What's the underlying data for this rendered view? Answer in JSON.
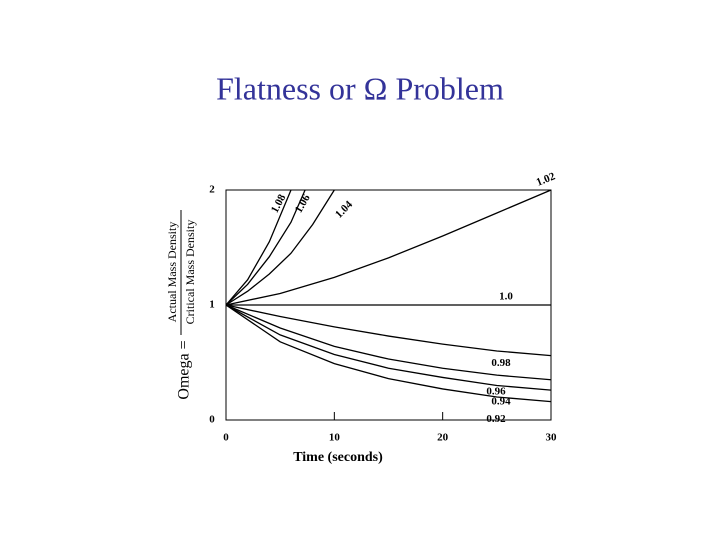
{
  "chart_data": {
    "type": "line",
    "title": "Flatness or Ω Problem",
    "xlabel": "Time (seconds)",
    "ylabel": {
      "lhs": "Omega =",
      "numerator": "Actual Mass Density",
      "denominator": "Critical Mass Density"
    },
    "xlim": [
      0,
      30
    ],
    "xticks": [
      0,
      10,
      20,
      30
    ],
    "ylim": [
      0,
      2
    ],
    "yticks": [
      0,
      1,
      2
    ],
    "color": "#000000",
    "series": [
      {
        "name": "1.08",
        "x": [
          0,
          2,
          4,
          6
        ],
        "values": [
          1,
          1.22,
          1.55,
          2.0
        ]
      },
      {
        "name": "1.06",
        "x": [
          0,
          2,
          4,
          6,
          7.3
        ],
        "values": [
          1,
          1.18,
          1.42,
          1.72,
          2.0
        ]
      },
      {
        "name": "1.04",
        "x": [
          0,
          2,
          4,
          6,
          8,
          10
        ],
        "values": [
          1,
          1.12,
          1.27,
          1.45,
          1.7,
          2.0
        ]
      },
      {
        "name": "1.02",
        "x": [
          0,
          5,
          10,
          15,
          20,
          25,
          30
        ],
        "values": [
          1,
          1.1,
          1.24,
          1.41,
          1.6,
          1.8,
          2.0
        ]
      },
      {
        "name": "1.0",
        "x": [
          0,
          30
        ],
        "values": [
          1,
          1
        ]
      },
      {
        "name": "0.98",
        "x": [
          0,
          5,
          10,
          15,
          20,
          25,
          30
        ],
        "values": [
          1,
          0.9,
          0.81,
          0.73,
          0.66,
          0.6,
          0.56
        ]
      },
      {
        "name": "0.96",
        "x": [
          0,
          5,
          10,
          15,
          20,
          25,
          30
        ],
        "values": [
          1,
          0.8,
          0.64,
          0.53,
          0.45,
          0.39,
          0.35
        ]
      },
      {
        "name": "0.94",
        "x": [
          0,
          5,
          10,
          15,
          20,
          25,
          30
        ],
        "values": [
          1,
          0.74,
          0.57,
          0.45,
          0.37,
          0.3,
          0.26
        ]
      },
      {
        "name": "0.92",
        "x": [
          0,
          5,
          10,
          15,
          20,
          25,
          30
        ],
        "values": [
          1,
          0.68,
          0.49,
          0.36,
          0.27,
          0.2,
          0.16
        ]
      }
    ]
  }
}
